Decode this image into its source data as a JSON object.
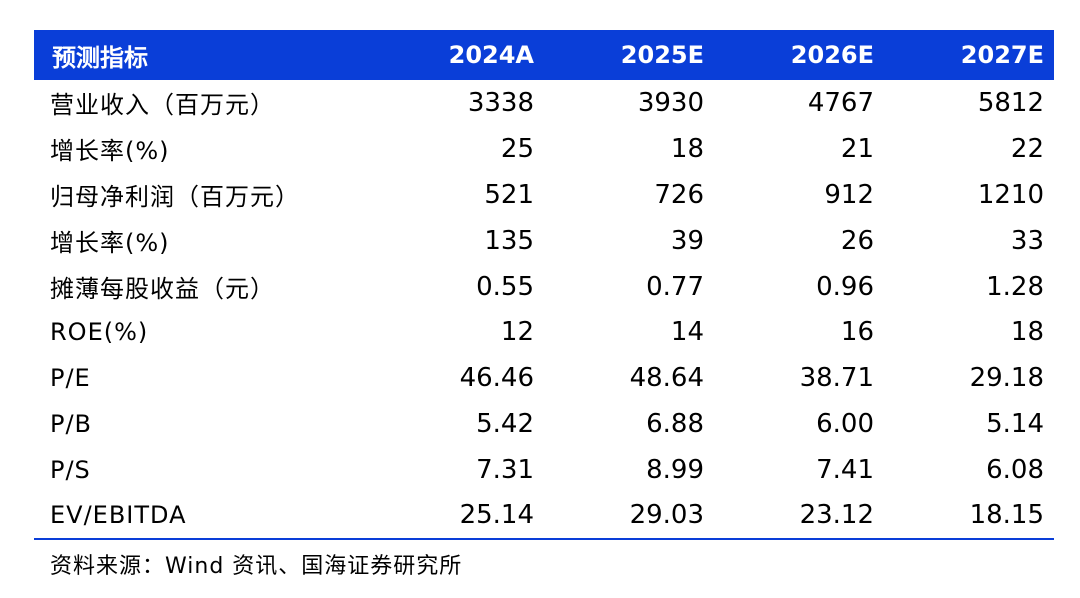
{
  "table": {
    "header": [
      "预测指标",
      "2024A",
      "2025E",
      "2026E",
      "2027E"
    ],
    "rows": [
      {
        "label": "营业收入（百万元）",
        "values": [
          "3338",
          "3930",
          "4767",
          "5812"
        ]
      },
      {
        "label": "增长率(%)",
        "values": [
          "25",
          "18",
          "21",
          "22"
        ]
      },
      {
        "label": "归母净利润（百万元）",
        "values": [
          "521",
          "726",
          "912",
          "1210"
        ]
      },
      {
        "label": "增长率(%)",
        "values": [
          "135",
          "39",
          "26",
          "33"
        ]
      },
      {
        "label": "摊薄每股收益（元）",
        "values": [
          "0.55",
          "0.77",
          "0.96",
          "1.28"
        ]
      },
      {
        "label": "ROE(%)",
        "values": [
          "12",
          "14",
          "16",
          "18"
        ]
      },
      {
        "label": "P/E",
        "values": [
          "46.46",
          "48.64",
          "38.71",
          "29.18"
        ]
      },
      {
        "label": "P/B",
        "values": [
          "5.42",
          "6.88",
          "6.00",
          "5.14"
        ]
      },
      {
        "label": "P/S",
        "values": [
          "7.31",
          "8.99",
          "7.41",
          "6.08"
        ]
      },
      {
        "label": "EV/EBITDA",
        "values": [
          "25.14",
          "29.03",
          "23.12",
          "18.15"
        ]
      }
    ]
  },
  "source_note": "资料来源：Wind 资讯、国海证券研究所",
  "colors": {
    "header_background": "#0a3ed8",
    "header_text": "#ffffff",
    "bottom_rule": "#0a3ed8"
  }
}
